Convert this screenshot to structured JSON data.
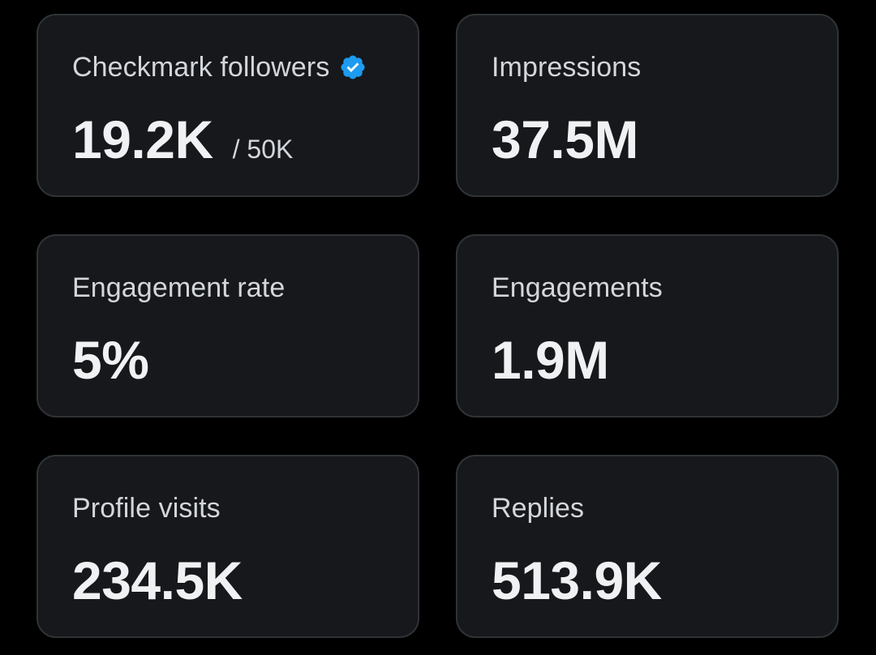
{
  "colors": {
    "background": "#000000",
    "card": "#16181c",
    "card_border": "#2f3336",
    "verified_badge": "#1d9bf0"
  },
  "cards": [
    {
      "label": "Checkmark followers",
      "value": "19.2K",
      "sub": "/ 50K",
      "icon": "verified-badge-icon"
    },
    {
      "label": "Impressions",
      "value": "37.5M"
    },
    {
      "label": "Engagement rate",
      "value": "5%"
    },
    {
      "label": "Engagements",
      "value": "1.9M"
    },
    {
      "label": "Profile visits",
      "value": "234.5K"
    },
    {
      "label": "Replies",
      "value": "513.9K"
    }
  ]
}
